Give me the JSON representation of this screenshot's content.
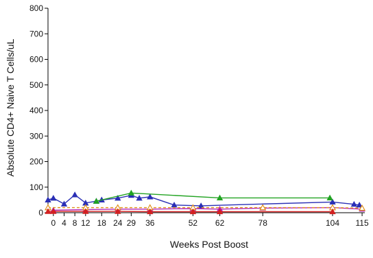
{
  "chart_data": {
    "type": "line",
    "xlabel": "Weeks Post Boost",
    "ylabel": "Absolute CD4+ Naive T Cells/uL",
    "ylim": [
      0,
      800
    ],
    "yticks": [
      0,
      100,
      200,
      300,
      400,
      500,
      600,
      700,
      800
    ],
    "xlim": [
      -2,
      116
    ],
    "xticks": [
      0,
      4,
      8,
      12,
      18,
      24,
      29,
      36,
      52,
      62,
      78,
      104,
      115
    ],
    "grid": false,
    "legend": "none",
    "series": [
      {
        "color": "#2a2fb5",
        "marker": "triangle",
        "dash": "",
        "points": [
          [
            -2,
            50
          ],
          [
            0,
            57
          ],
          [
            4,
            34
          ],
          [
            8,
            70
          ],
          [
            12,
            38
          ],
          [
            16,
            45
          ],
          [
            18,
            50
          ],
          [
            24,
            57
          ],
          [
            29,
            68
          ],
          [
            32,
            57
          ],
          [
            36,
            62
          ],
          [
            45,
            30
          ],
          [
            55,
            27
          ],
          [
            104,
            42
          ],
          [
            112,
            33
          ],
          [
            114,
            30
          ]
        ]
      },
      {
        "color": "#22a322",
        "marker": "triangle",
        "dash": "",
        "points": [
          [
            16,
            45
          ],
          [
            29,
            77
          ],
          [
            62,
            58
          ],
          [
            103,
            58
          ]
        ]
      },
      {
        "color": "#b526b5",
        "marker": "triangle",
        "dash": "",
        "points": [
          [
            0,
            10
          ],
          [
            12,
            12
          ],
          [
            24,
            14
          ],
          [
            36,
            14
          ],
          [
            52,
            16
          ],
          [
            62,
            14
          ],
          [
            78,
            18
          ],
          [
            104,
            20
          ],
          [
            115,
            14
          ]
        ]
      },
      {
        "color": "#e0901c",
        "marker": "open-triangle",
        "dash": "4,3",
        "points": [
          [
            -2,
            20
          ],
          [
            12,
            20
          ],
          [
            24,
            20
          ],
          [
            36,
            20
          ],
          [
            52,
            20
          ],
          [
            78,
            20
          ],
          [
            104,
            20
          ],
          [
            115,
            18
          ]
        ]
      },
      {
        "color": "#d42020",
        "marker": "triangle",
        "dash": "",
        "points": [
          [
            -2,
            5
          ],
          [
            0,
            5
          ],
          [
            12,
            5
          ],
          [
            24,
            5
          ],
          [
            36,
            4
          ],
          [
            52,
            4
          ],
          [
            62,
            4
          ],
          [
            104,
            4
          ]
        ]
      }
    ]
  }
}
